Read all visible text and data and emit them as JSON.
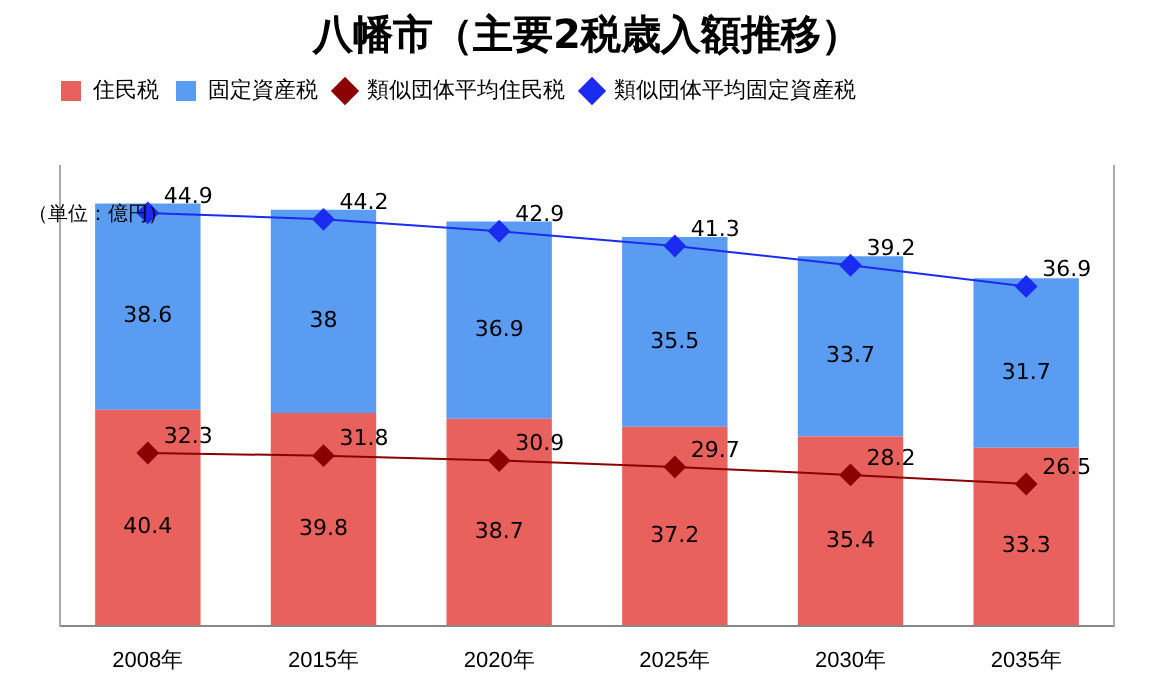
{
  "chart_data": {
    "type": "bar",
    "title": "八幡市（主要2税歳入額推移）",
    "annotations": [
      "（単位：億円）"
    ],
    "categories": [
      "2008年",
      "2015年",
      "2020年",
      "2025年",
      "2030年",
      "2035年"
    ],
    "stacked": true,
    "tick_labels": "x",
    "grid": false,
    "legend": "top",
    "data_labels": true,
    "marker": "diamond",
    "ylim": [
      0,
      86
    ],
    "y2lim": [
      0,
      50
    ],
    "series": [
      {
        "name": "住民税",
        "color": "#e8615d",
        "values": [
          40.4,
          39.8,
          38.7,
          37.2,
          35.4,
          33.3
        ]
      },
      {
        "name": "固定資産税",
        "color": "#5a9cf2",
        "values": [
          38.6,
          38.0,
          36.9,
          35.5,
          33.7,
          31.7
        ]
      },
      {
        "name": "類似団体平均住民税",
        "type": "line",
        "color": "#8b0000",
        "values": [
          32.3,
          31.8,
          30.9,
          29.7,
          28.2,
          26.5
        ]
      },
      {
        "name": "類似団体平均固定資産税",
        "type": "line",
        "axis": "y2",
        "color": "#1a2cf0",
        "values": [
          44.9,
          44.2,
          42.9,
          41.3,
          39.2,
          36.9
        ]
      }
    ]
  }
}
